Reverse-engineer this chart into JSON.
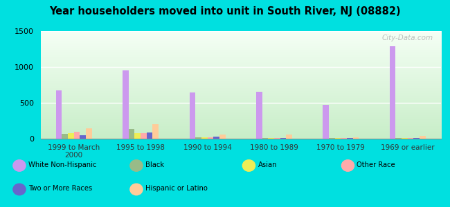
{
  "title": "Year householders moved into unit in South River, NJ (08882)",
  "categories": [
    "1999 to March\n2000",
    "1995 to 1998",
    "1990 to 1994",
    "1980 to 1989",
    "1970 to 1979",
    "1969 or earlier"
  ],
  "series": {
    "White Non-Hispanic": [
      675,
      950,
      640,
      650,
      475,
      1290
    ],
    "Black": [
      70,
      130,
      20,
      10,
      10,
      5
    ],
    "Asian": [
      80,
      80,
      20,
      5,
      5,
      5
    ],
    "Other Race": [
      100,
      80,
      15,
      5,
      5,
      5
    ],
    "Two or More Races": [
      50,
      90,
      30,
      5,
      5,
      5
    ],
    "Hispanic or Latino": [
      145,
      205,
      55,
      55,
      20,
      40
    ]
  },
  "colors": {
    "White Non-Hispanic": "#cc99ee",
    "Black": "#99bb88",
    "Asian": "#eeee55",
    "Other Race": "#ffaaaa",
    "Two or More Races": "#6666cc",
    "Hispanic or Latino": "#ffcc99"
  },
  "ylim": [
    0,
    1500
  ],
  "yticks": [
    0,
    500,
    1000,
    1500
  ],
  "background_top": "#c8eec8",
  "background_bottom": "#f0fff0",
  "outer_background": "#00e0e0",
  "watermark": "City-Data.com"
}
